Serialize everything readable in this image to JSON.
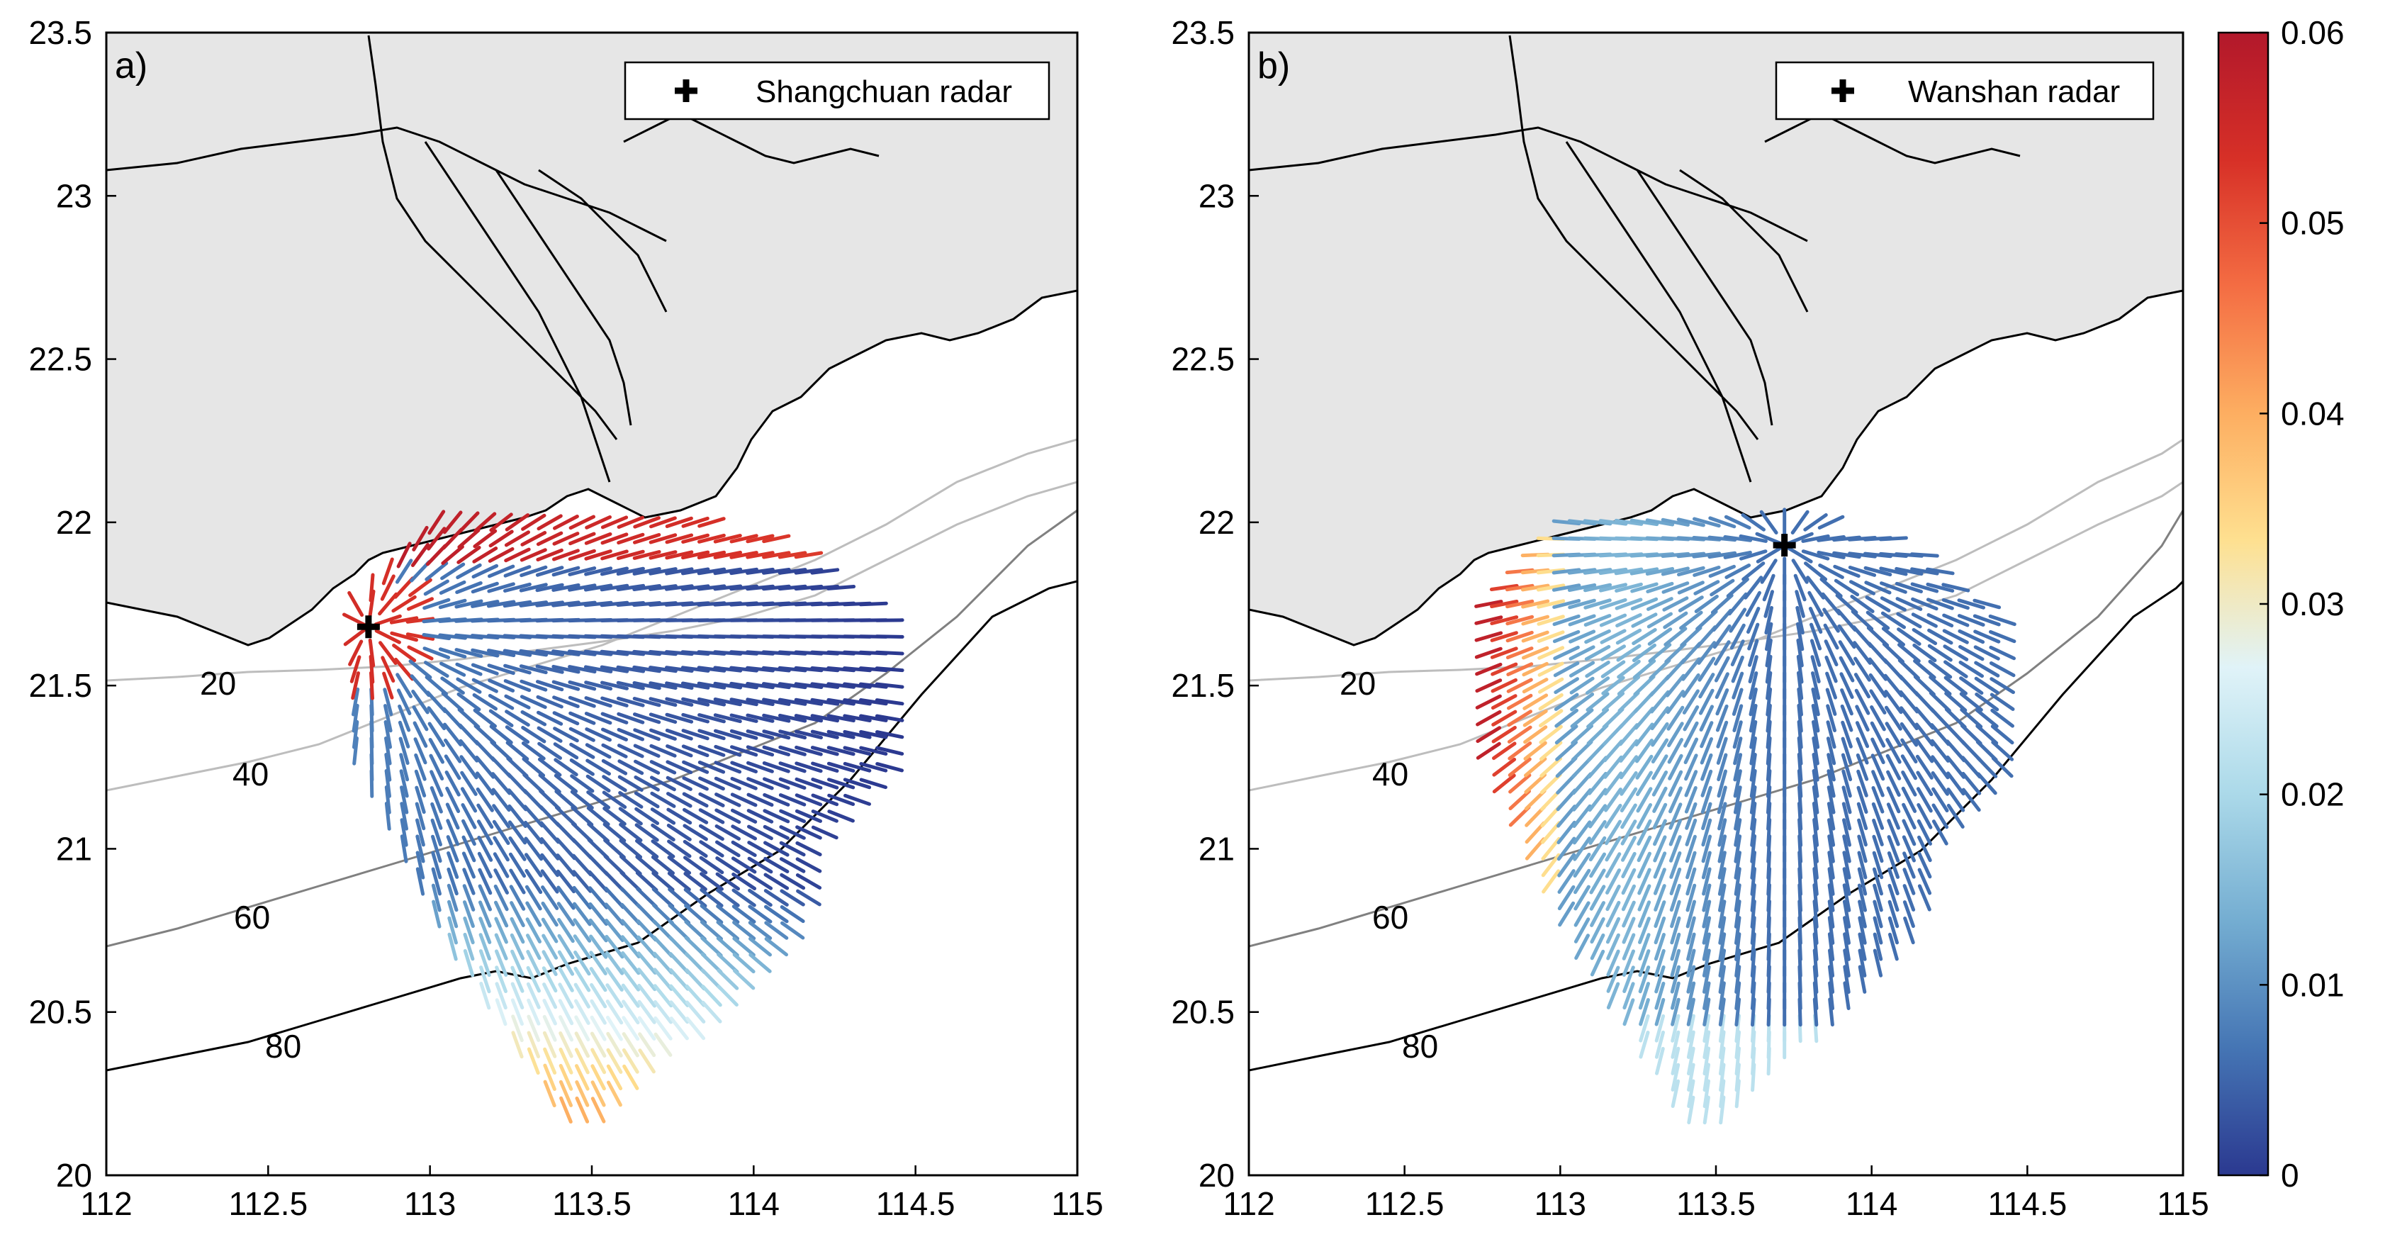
{
  "figure": {
    "panels": [
      {
        "label": "a)",
        "legend": "Shangchuan radar",
        "radar": {
          "lon": 112.81,
          "lat": 21.68
        },
        "pattern": "shangchuan"
      },
      {
        "label": "b)",
        "legend": "Wanshan radar",
        "radar": {
          "lon": 113.72,
          "lat": 21.93
        },
        "pattern": "wanshan"
      }
    ],
    "x_ticks": [
      "112",
      "112.5",
      "113",
      "113.5",
      "114",
      "114.5",
      "115"
    ],
    "y_ticks": [
      "20",
      "20.5",
      "21",
      "21.5",
      "22",
      "22.5",
      "23",
      "23.5"
    ],
    "xlim": [
      112,
      115
    ],
    "ylim": [
      20,
      23.5
    ],
    "isobath_labels": [
      "20",
      "40",
      "60",
      "80"
    ],
    "colorbar": {
      "ticks": [
        "0",
        "0.01",
        "0.02",
        "0.03",
        "0.04",
        "0.05",
        "0.06"
      ],
      "range": [
        0,
        0.06
      ],
      "colors": [
        "#2b3990",
        "#4575b4",
        "#74add1",
        "#abd9e9",
        "#e0f3f8",
        "#fee090",
        "#fdae61",
        "#f46d43",
        "#d73027",
        "#b2182b"
      ]
    },
    "colors": {
      "land": "#e6e6e6",
      "sea": "#ffffff",
      "coast": "#000000",
      "isobath_light": "#bdbdbd",
      "isobath_mid": "#808080",
      "isobath_dark": "#000000"
    }
  }
}
